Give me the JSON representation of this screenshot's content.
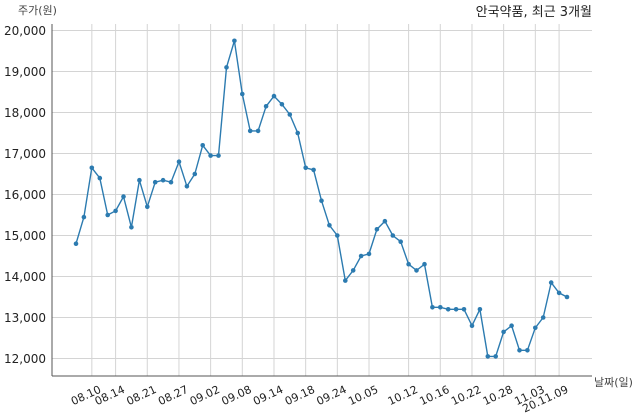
{
  "chart_data": {
    "type": "line",
    "title": "안국약품, 최근 3개월",
    "ylabel": "주가(원)",
    "xlabel": "날짜(일)",
    "ylim": [
      11700,
      20000
    ],
    "yticks": [
      12000,
      13000,
      14000,
      15000,
      16000,
      17000,
      18000,
      19000,
      20000
    ],
    "ytick_labels": [
      "12,000",
      "13,000",
      "14,000",
      "15,000",
      "16,000",
      "17,000",
      "18,000",
      "19,000",
      "20,000"
    ],
    "xtick_labels": [
      "08.10",
      "08.14",
      "08.21",
      "08.27",
      "09.02",
      "09.08",
      "09.14",
      "09.18",
      "09.24",
      "10.05",
      "10.12",
      "10.16",
      "10.22",
      "10.28",
      "11.03",
      "20.11.09"
    ],
    "xtick_index": [
      2,
      5,
      9,
      13,
      17,
      21,
      25,
      29,
      33,
      37,
      42,
      46,
      50,
      54,
      58,
      61
    ],
    "grid": true,
    "line_color": "#2c7bb0",
    "series": [
      {
        "values": [
          14800,
          15450,
          16650,
          16400,
          15500,
          15600,
          15950,
          15200,
          16350,
          15700,
          16300,
          16350,
          16300,
          16800,
          16200,
          16500,
          17200,
          16950,
          16950,
          19100,
          19750,
          18450,
          17550,
          17550,
          18150,
          18400,
          18200,
          17950,
          17500,
          16650,
          16600,
          15850,
          15250,
          15000,
          13900,
          14150,
          14500,
          14550,
          15150,
          15350,
          15000,
          14850,
          14300,
          14150,
          14300,
          13250,
          13250,
          13200,
          13200,
          13200,
          12800,
          13200,
          12050,
          12050,
          12650,
          12800,
          12200,
          12200,
          12750,
          13000,
          13850,
          13600,
          13500
        ]
      }
    ]
  }
}
